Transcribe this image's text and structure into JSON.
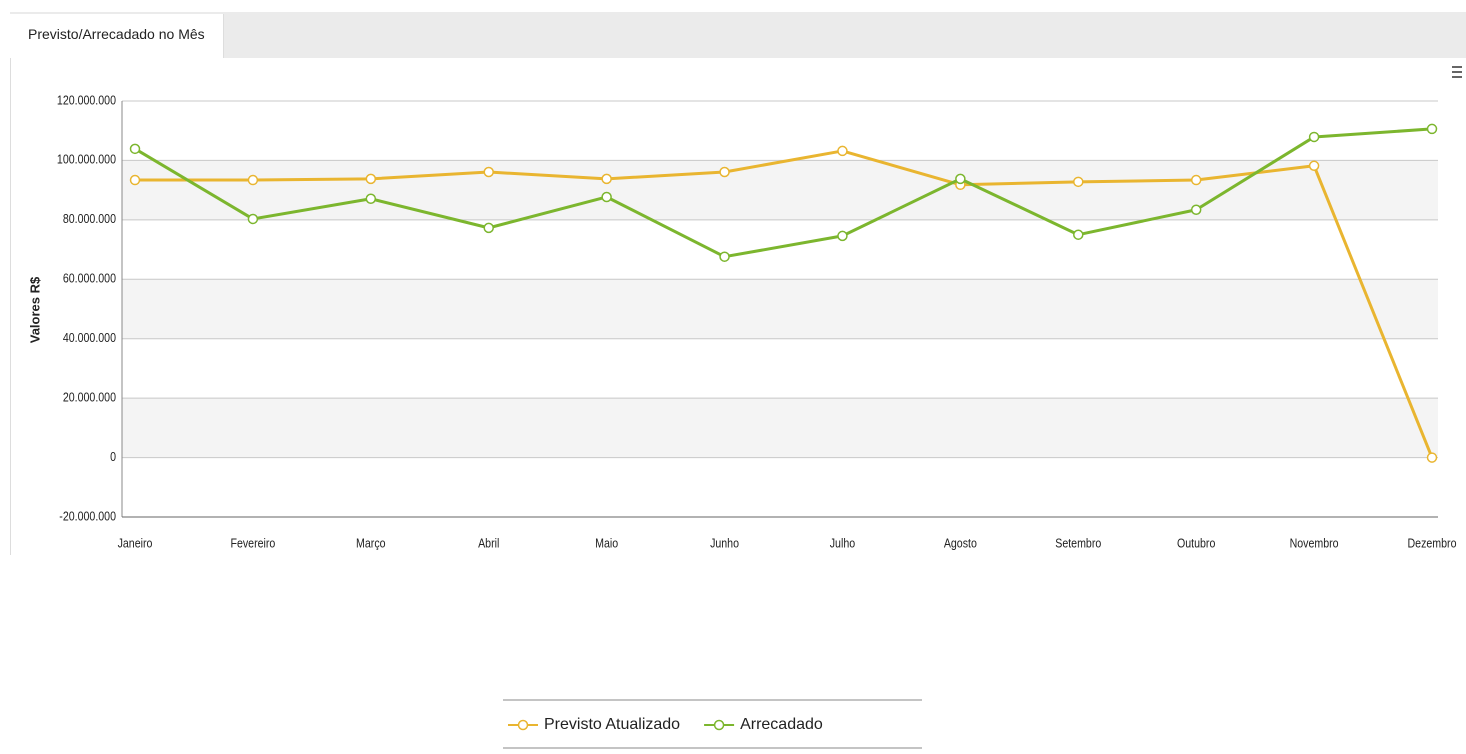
{
  "tab": "Previsto/Arrecadado no Mês",
  "chart_data": {
    "type": "line",
    "y_label": "Valores R$",
    "categories": [
      "Janeiro",
      "Fevereiro",
      "Março",
      "Abril",
      "Maio",
      "Junho",
      "Julho",
      "Agosto",
      "Setembro",
      "Outubro",
      "Novembro",
      "Dezembro"
    ],
    "series": [
      {
        "name": "Previsto Atualizado",
        "color": "#e9b530",
        "values": [
          93400000,
          93400000,
          93800000,
          96100000,
          93800000,
          96100000,
          103200000,
          91800000,
          92800000,
          93400000,
          98200000,
          0
        ]
      },
      {
        "name": "Arrecadado",
        "color": "#7cb62e",
        "values": [
          103900000,
          80300000,
          87100000,
          77300000,
          87700000,
          67600000,
          74600000,
          93800000,
          75000000,
          83400000,
          107900000,
          110600000
        ]
      }
    ],
    "ylim": [
      -20000000,
      120000000
    ],
    "yticks": [
      {
        "value": -20000000,
        "label": "-20.000.000"
      },
      0,
      {
        "value": 20000000,
        "label": "20.000.000"
      },
      {
        "value": 40000000,
        "label": "40.000.000"
      },
      {
        "value": 60000000,
        "label": "60.000.000"
      },
      {
        "value": 80000000,
        "label": "80.000.000"
      },
      {
        "value": 100000000,
        "label": "100.000.000"
      },
      {
        "value": 120000000,
        "label": "120.000.000"
      }
    ],
    "grid": true,
    "legend": "bottom"
  }
}
